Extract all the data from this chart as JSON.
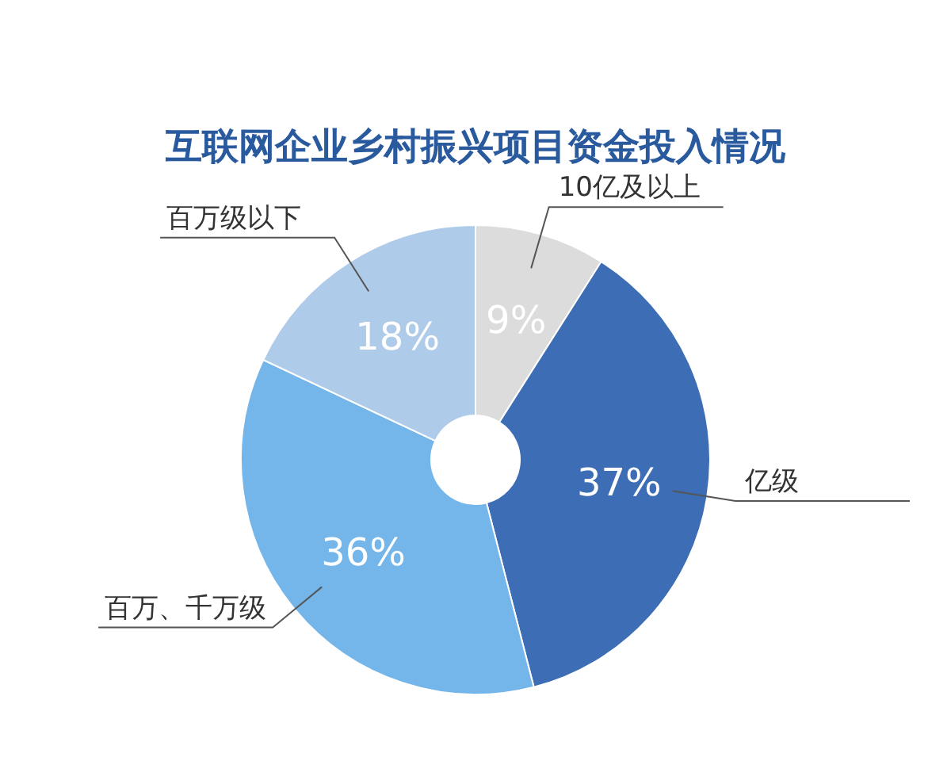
{
  "chart_data": {
    "type": "donut",
    "title": "互联网企业乡村振兴项目资金投入情况",
    "categories": [
      "10亿及以上",
      "亿级",
      "百万、千万级",
      "百万级以下"
    ],
    "values": [
      9,
      37,
      36,
      18
    ],
    "value_labels": [
      "9%",
      "37%",
      "36%",
      "18%"
    ],
    "colors": [
      "#dcdcdc",
      "#3d6db5",
      "#74b6ea",
      "#aecbea"
    ]
  }
}
